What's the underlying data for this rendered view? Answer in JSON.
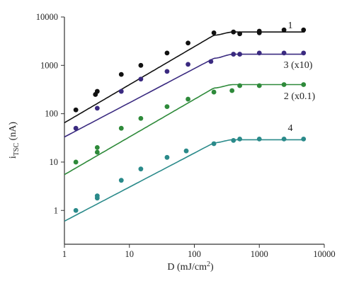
{
  "chart_data": {
    "type": "scatter",
    "x_scale": "log",
    "y_scale": "log",
    "xlim": [
      1,
      10000
    ],
    "ylim": [
      0.2,
      10000
    ],
    "grid": false,
    "xlabel": {
      "main": "D (mJ/cm",
      "sup": "2",
      "end": ")"
    },
    "ylabel": {
      "main": "i",
      "sub": "TSC",
      "end": " (nA)"
    },
    "x_ticks": [
      {
        "value": 1,
        "label": "1"
      },
      {
        "value": 10,
        "label": "10"
      },
      {
        "value": 100,
        "label": "100"
      },
      {
        "value": 1000,
        "label": "1000"
      },
      {
        "value": 10000,
        "label": "10000"
      }
    ],
    "y_ticks": [
      {
        "value": 1,
        "label": "1"
      },
      {
        "value": 10,
        "label": "10"
      },
      {
        "value": 100,
        "label": "100"
      },
      {
        "value": 1000,
        "label": "1000"
      },
      {
        "value": 10000,
        "label": "10000"
      }
    ],
    "series": [
      {
        "name": "1",
        "color": "#111111",
        "points": [
          [
            1.5,
            120
          ],
          [
            3,
            250
          ],
          [
            3.2,
            290
          ],
          [
            7.5,
            650
          ],
          [
            15,
            1000
          ],
          [
            38,
            1800
          ],
          [
            80,
            2900
          ],
          [
            200,
            4700
          ],
          [
            400,
            4900
          ],
          [
            500,
            4500
          ],
          [
            1000,
            4700
          ],
          [
            1000,
            5100
          ],
          [
            2400,
            5400
          ],
          [
            4800,
            5400
          ]
        ],
        "fit": {
          "x": [
            1,
            200,
            400,
            5000
          ],
          "y": [
            65,
            4200,
            4900,
            4900
          ]
        }
      },
      {
        "name": "3 (x10)",
        "color": "#3a2a80",
        "points": [
          [
            1.5,
            50
          ],
          [
            3.2,
            130
          ],
          [
            7.5,
            290
          ],
          [
            15,
            520
          ],
          [
            38,
            750
          ],
          [
            80,
            1050
          ],
          [
            180,
            1200
          ],
          [
            400,
            1700
          ],
          [
            500,
            1700
          ],
          [
            1000,
            1800
          ],
          [
            2400,
            1800
          ],
          [
            4800,
            1800
          ]
        ],
        "fit": {
          "x": [
            1,
            200,
            400,
            5000
          ],
          "y": [
            33,
            1400,
            1700,
            1700
          ]
        }
      },
      {
        "name": "2 (x0.1)",
        "color": "#2e8a3a",
        "points": [
          [
            1.5,
            10
          ],
          [
            3.2,
            16
          ],
          [
            3.2,
            20
          ],
          [
            7.5,
            50
          ],
          [
            15,
            80
          ],
          [
            38,
            140
          ],
          [
            80,
            200
          ],
          [
            200,
            280
          ],
          [
            380,
            300
          ],
          [
            500,
            380
          ],
          [
            1000,
            380
          ],
          [
            2400,
            400
          ],
          [
            4800,
            400
          ]
        ],
        "fit": {
          "x": [
            1,
            200,
            400,
            5000
          ],
          "y": [
            5.5,
            340,
            400,
            400
          ]
        }
      },
      {
        "name": "4",
        "color": "#2a8a8a",
        "points": [
          [
            1.5,
            1.0
          ],
          [
            3.2,
            1.8
          ],
          [
            3.2,
            2.0
          ],
          [
            7.5,
            4.2
          ],
          [
            15,
            7.2
          ],
          [
            38,
            12.5
          ],
          [
            75,
            17
          ],
          [
            200,
            24
          ],
          [
            400,
            28
          ],
          [
            500,
            30
          ],
          [
            1000,
            30
          ],
          [
            2400,
            30
          ],
          [
            4800,
            30
          ]
        ],
        "fit": {
          "x": [
            1,
            200,
            400,
            5000
          ],
          "y": [
            0.6,
            25,
            29,
            29
          ]
        }
      }
    ]
  }
}
